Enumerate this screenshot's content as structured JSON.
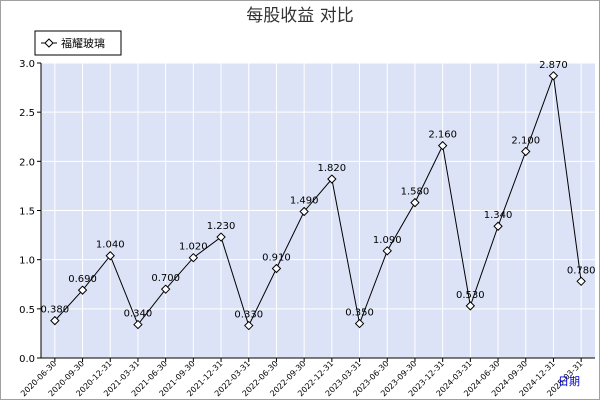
{
  "chart_data": {
    "type": "line",
    "title": "每股收益  对比",
    "xlabel": "日期",
    "ylabel": "",
    "ylim": [
      0,
      3.0
    ],
    "yticks": [
      "0.0",
      "0.5",
      "1.0",
      "1.5",
      "2.0",
      "2.5",
      "3.0"
    ],
    "legend_position": "top-left",
    "grid": true,
    "colors": {
      "plot_bg": "#dde3f7",
      "grid": "#ffffff",
      "line": "#000000",
      "marker_fill": "#ffffff"
    },
    "categories": [
      "2020-06-30",
      "2020-09-30",
      "2020-12-31",
      "2021-03-31",
      "2021-06-30",
      "2021-09-30",
      "2021-12-31",
      "2022-03-31",
      "2022-06-30",
      "2022-09-30",
      "2022-12-31",
      "2023-03-31",
      "2023-06-30",
      "2023-09-30",
      "2023-12-31",
      "2024-03-31",
      "2024-06-30",
      "2024-09-30",
      "2024-12-31",
      "2025-03-31"
    ],
    "series": [
      {
        "name": "福耀玻璃",
        "values": [
          0.38,
          0.69,
          1.04,
          0.34,
          0.7,
          1.02,
          1.23,
          0.33,
          0.91,
          1.49,
          1.82,
          0.35,
          1.09,
          1.58,
          2.16,
          0.53,
          1.34,
          2.1,
          2.87,
          0.78
        ],
        "labels": [
          "0.380",
          "0.690",
          "1.040",
          "0.340",
          "0.700",
          "1.020",
          "1.230",
          "0.330",
          "0.910",
          "1.490",
          "1.820",
          "0.350",
          "1.090",
          "1.580",
          "2.160",
          "0.530",
          "1.340",
          "2.100",
          "2.870",
          "0.780"
        ]
      }
    ]
  }
}
